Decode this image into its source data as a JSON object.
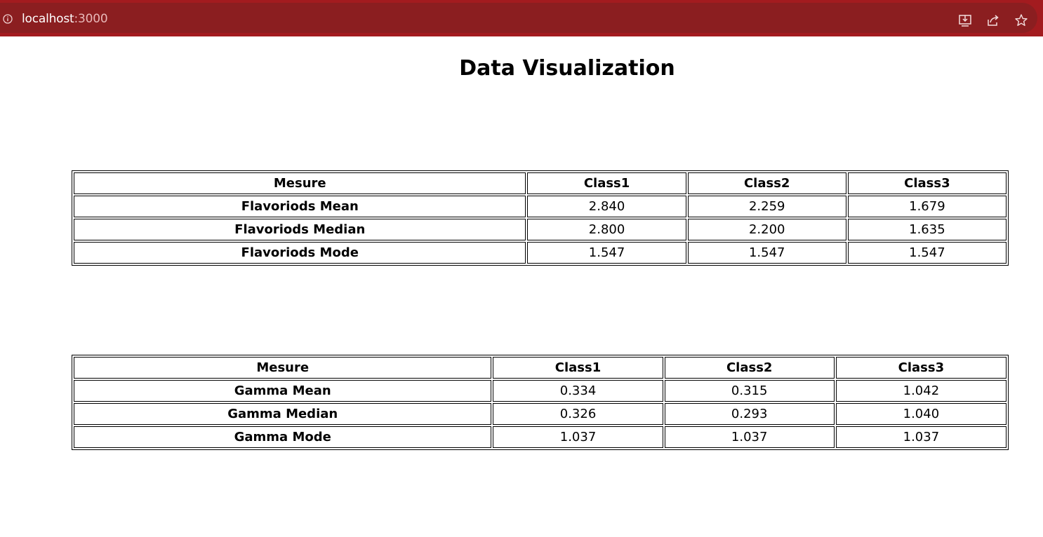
{
  "browser": {
    "url_host": "localhost",
    "url_port": ":3000",
    "icons": [
      "info-icon",
      "install-icon",
      "share-icon",
      "bookmark-star-icon"
    ]
  },
  "page": {
    "title": "Data Visualization"
  },
  "tables": [
    {
      "headers": [
        "Mesure",
        "Class1",
        "Class2",
        "Class3"
      ],
      "rows": [
        {
          "label": "Flavoriods Mean",
          "values": [
            "2.840",
            "2.259",
            "1.679"
          ]
        },
        {
          "label": "Flavoriods Median",
          "values": [
            "2.800",
            "2.200",
            "1.635"
          ]
        },
        {
          "label": "Flavoriods Mode",
          "values": [
            "1.547",
            "1.547",
            "1.547"
          ]
        }
      ]
    },
    {
      "headers": [
        "Mesure",
        "Class1",
        "Class2",
        "Class3"
      ],
      "rows": [
        {
          "label": "Gamma Mean",
          "values": [
            "0.334",
            "0.315",
            "1.042"
          ]
        },
        {
          "label": "Gamma Median",
          "values": [
            "0.326",
            "0.293",
            "1.040"
          ]
        },
        {
          "label": "Gamma Mode",
          "values": [
            "1.037",
            "1.037",
            "1.037"
          ]
        }
      ]
    }
  ],
  "colors": {
    "toolbar": "#a31b1f",
    "omnibox": "#8b1e20"
  }
}
